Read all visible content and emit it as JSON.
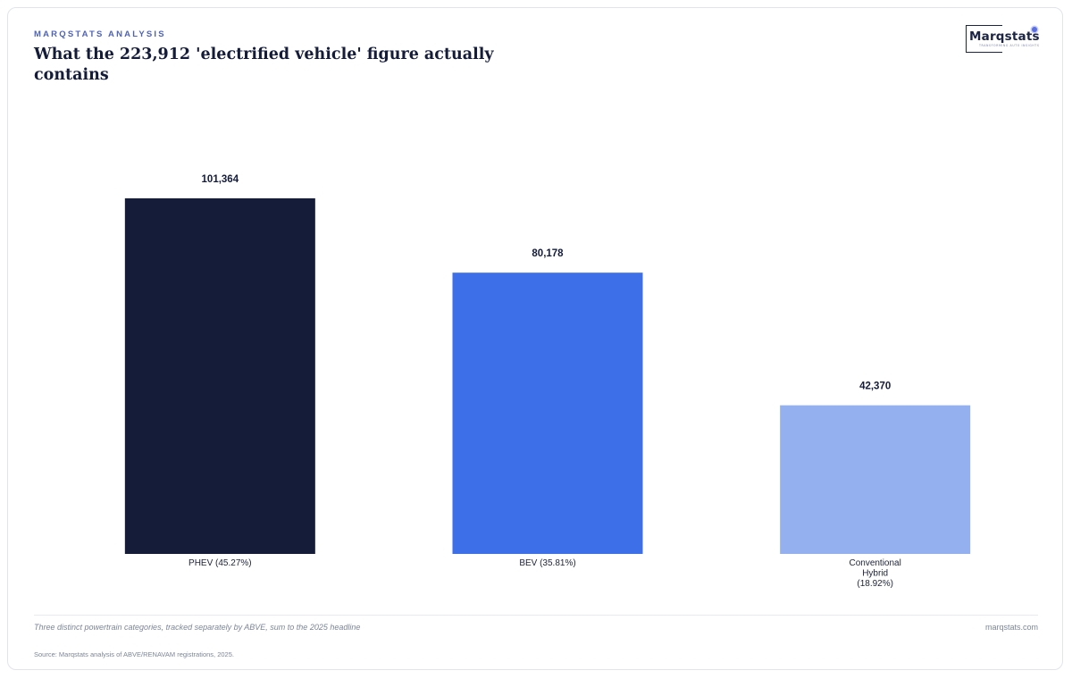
{
  "header": {
    "kicker": "MARQSTATS ANALYSIS",
    "title": "What the 223,912 'electrified vehicle' figure actually contains"
  },
  "logo": {
    "wordmark": "Marqstats",
    "tagline": "TRANSFORMING AUTO INSIGHTS"
  },
  "chart_data": {
    "type": "bar",
    "title": "What the 223,912 'electrified vehicle' figure actually contains",
    "categories": [
      "PHEV (45.27%)",
      "BEV (35.81%)",
      "Conventional Hybrid (18.92%)"
    ],
    "category_lines": [
      [
        "PHEV (45.27%)"
      ],
      [
        "BEV (35.81%)"
      ],
      [
        "Conventional",
        "Hybrid",
        "(18.92%)"
      ]
    ],
    "values": [
      101364,
      80178,
      42370
    ],
    "value_labels": [
      "101,364",
      "80,178",
      "42,370"
    ],
    "colors": [
      "#141c3a",
      "#3d70e8",
      "#95b0ef"
    ],
    "xlabel": "",
    "ylabel": "",
    "ylim": [
      0,
      112000
    ],
    "grid": false,
    "legend": "none"
  },
  "footer": {
    "note": "Three distinct powertrain categories, tracked separately by ABVE, sum to the 2025 headline",
    "site": "marqstats.com",
    "source": "Source: Marqstats analysis of ABVE/RENAVAM registrations, 2025."
  }
}
